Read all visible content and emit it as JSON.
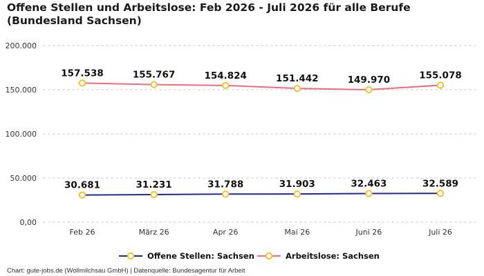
{
  "title": "Offene Stellen und Arbeitslose: Feb 2026 - Juli 2026 für alle Berufe (Bundesland Sachsen)",
  "footer": "Chart: gute-jobs.de (Wollmilchsau GmbH) | Datenquelle: Bundesagentur für Arbeit",
  "colors": {
    "offene": "#1f2a8c",
    "arbeitslose": "#ef6b7c",
    "marker_stroke": "#f2c12e",
    "grid": "#cccccc"
  },
  "chart_data": {
    "type": "line",
    "categories": [
      "Feb 26",
      "März 26",
      "Apr 26",
      "Mai 26",
      "Juni 26",
      "Juli 26"
    ],
    "ylim": [
      0,
      200000
    ],
    "yticks": [
      0,
      50000,
      100000,
      150000,
      200000
    ],
    "ytick_labels": [
      "0,00",
      "50.000",
      "100.000",
      "150.000",
      "200.000"
    ],
    "grid": true,
    "legend": "bottom",
    "series": [
      {
        "name": "Offene Stellen: Sachsen",
        "values": [
          30681,
          31231,
          31788,
          31903,
          32463,
          32589
        ],
        "labels": [
          "30.681",
          "31.231",
          "31.788",
          "31.903",
          "32.463",
          "32.589"
        ]
      },
      {
        "name": "Arbeitslose: Sachsen",
        "values": [
          157538,
          155767,
          154824,
          151442,
          149970,
          155078
        ],
        "labels": [
          "157.538",
          "155.767",
          "154.824",
          "151.442",
          "149.970",
          "155.078"
        ]
      }
    ]
  }
}
